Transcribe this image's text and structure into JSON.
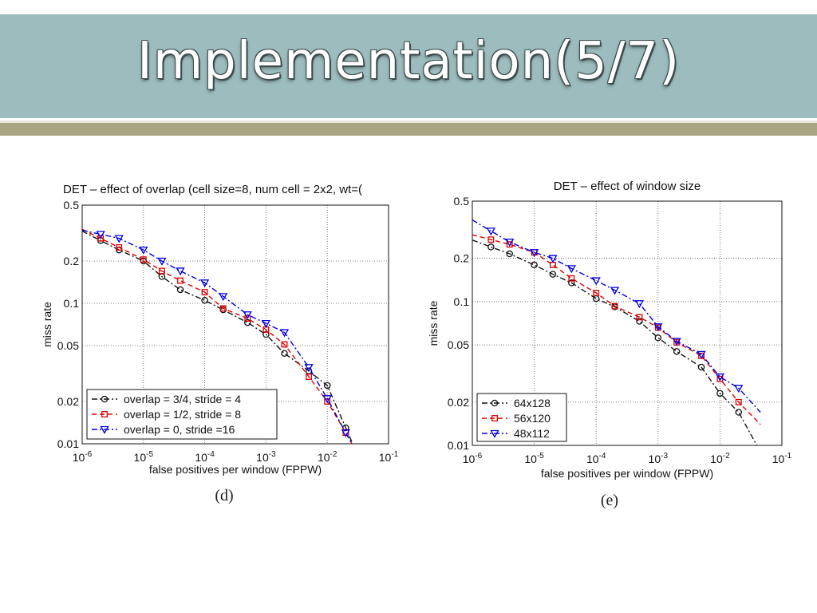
{
  "slide": {
    "title": "Implementation(5/7)"
  },
  "chart_data": [
    {
      "type": "line",
      "title": "DET – effect of overlap (cell size=8, num cell = 2x2, wt=(",
      "xlabel": "false positives per window (FPPW)",
      "ylabel": "miss rate",
      "x_scale": "log",
      "y_scale": "log",
      "xlim": [
        1e-06,
        0.1
      ],
      "ylim": [
        0.01,
        0.5
      ],
      "x_ticks": [
        "10^-6",
        "10^-5",
        "10^-4",
        "10^-3",
        "10^-2",
        "10^-1"
      ],
      "y_ticks": [
        "0.5",
        "0.2",
        "0.1",
        "0.05",
        "0.02",
        "0.01"
      ],
      "grid": true,
      "legend_position": "bottom-left",
      "caption": "(d)",
      "series": [
        {
          "name": "overlap = 3/4, stride =  4",
          "color": "#111111",
          "dash": "dashdot",
          "marker": "circle",
          "x": [
            2e-06,
            4e-06,
            1e-05,
            2e-05,
            4e-05,
            0.0001,
            0.0002,
            0.0005,
            0.001,
            0.002,
            0.005,
            0.01,
            0.02,
            0.029
          ],
          "y": [
            0.28,
            0.24,
            0.2,
            0.155,
            0.125,
            0.105,
            0.09,
            0.073,
            0.06,
            0.044,
            0.033,
            0.026,
            0.013,
            0.009
          ]
        },
        {
          "name": "overlap = 1/2, stride =  8",
          "color": "#dd0000",
          "dash": "dashed",
          "marker": "square",
          "x": [
            2e-06,
            4e-06,
            1e-05,
            2e-05,
            4e-05,
            0.0001,
            0.0002,
            0.0005,
            0.001,
            0.002,
            0.005,
            0.01,
            0.02,
            0.029
          ],
          "y": [
            0.29,
            0.25,
            0.205,
            0.17,
            0.145,
            0.12,
            0.092,
            0.078,
            0.065,
            0.051,
            0.03,
            0.02,
            0.012,
            0.009
          ]
        },
        {
          "name": "overlap =    0, stride =16",
          "color": "#0000dd",
          "dash": "dashdot",
          "marker": "triangle-down",
          "x": [
            2e-06,
            4e-06,
            1e-05,
            2e-05,
            4e-05,
            0.0001,
            0.0002,
            0.0005,
            0.001,
            0.002,
            0.005,
            0.01,
            0.02,
            0.029
          ],
          "y": [
            0.31,
            0.29,
            0.24,
            0.2,
            0.17,
            0.14,
            0.112,
            0.083,
            0.072,
            0.062,
            0.035,
            0.021,
            0.012,
            0.009
          ]
        }
      ]
    },
    {
      "type": "line",
      "title": "DET – effect of window size",
      "xlabel": "false positives per window (FPPW)",
      "ylabel": "miss rate",
      "x_scale": "log",
      "y_scale": "log",
      "xlim": [
        1e-06,
        0.1
      ],
      "ylim": [
        0.01,
        0.5
      ],
      "x_ticks": [
        "10^-6",
        "10^-5",
        "10^-4",
        "10^-3",
        "10^-2",
        "10^-1"
      ],
      "y_ticks": [
        "0.5",
        "0.2",
        "0.1",
        "0.05",
        "0.02",
        "0.01"
      ],
      "grid": true,
      "legend_position": "bottom-left",
      "caption": "(e)",
      "series": [
        {
          "name": "64x128",
          "color": "#111111",
          "dash": "dashdot",
          "marker": "circle",
          "x": [
            2e-06,
            4e-06,
            1e-05,
            2e-05,
            4e-05,
            0.0001,
            0.0002,
            0.0005,
            0.001,
            0.002,
            0.005,
            0.01,
            0.02,
            0.045
          ],
          "y": [
            0.24,
            0.215,
            0.18,
            0.155,
            0.135,
            0.105,
            0.092,
            0.073,
            0.056,
            0.045,
            0.035,
            0.023,
            0.017,
            0.009
          ]
        },
        {
          "name": "56x120",
          "color": "#dd0000",
          "dash": "dashed",
          "marker": "square",
          "x": [
            2e-06,
            4e-06,
            1e-05,
            2e-05,
            4e-05,
            0.0001,
            0.0002,
            0.0005,
            0.001,
            0.002,
            0.005,
            0.01,
            0.02,
            0.045
          ],
          "y": [
            0.27,
            0.25,
            0.22,
            0.18,
            0.145,
            0.115,
            0.093,
            0.078,
            0.066,
            0.052,
            0.042,
            0.029,
            0.02,
            0.014
          ]
        },
        {
          "name": "48x112",
          "color": "#0000dd",
          "dash": "dashdot",
          "marker": "triangle-down",
          "x": [
            2e-06,
            4e-06,
            1e-05,
            2e-05,
            4e-05,
            0.0001,
            0.0002,
            0.0005,
            0.001,
            0.002,
            0.005,
            0.01,
            0.02,
            0.045
          ],
          "y": [
            0.31,
            0.26,
            0.22,
            0.2,
            0.17,
            0.14,
            0.12,
            0.097,
            0.067,
            0.053,
            0.043,
            0.03,
            0.025,
            0.017
          ]
        }
      ]
    }
  ]
}
